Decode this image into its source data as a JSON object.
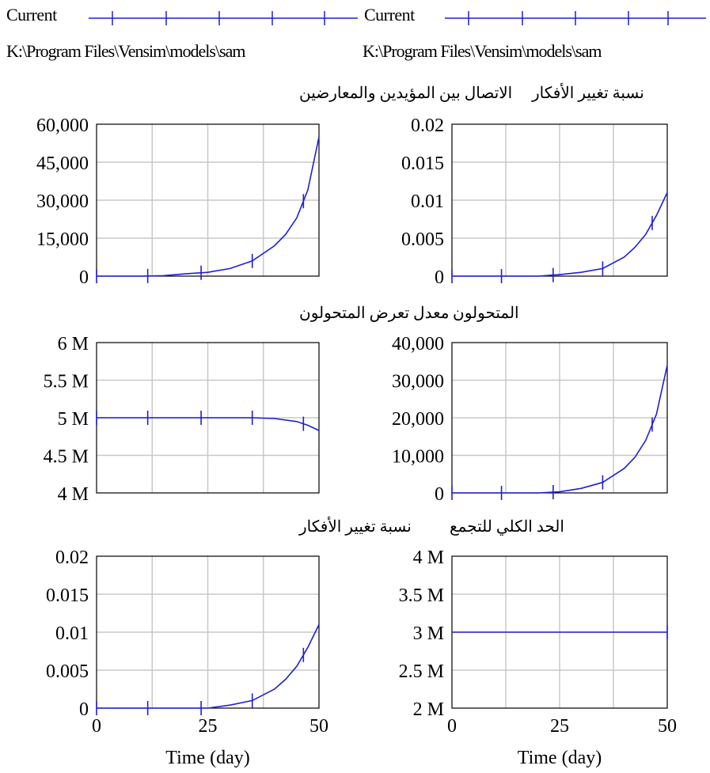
{
  "legend": [
    {
      "label": "Current",
      "path": "K:\\Program Files\\Vensim\\models\\sam"
    },
    {
      "label": "Current",
      "path": "K:\\Program Files\\Vensim\\models\\sam"
    }
  ],
  "colors": {
    "line": "#1f1fd6",
    "grid": "#c8c8c8",
    "frame": "#000000"
  },
  "chart_data": [
    {
      "type": "line",
      "title": "الاتصال بين المؤيدين والمعارضين",
      "x": [
        0,
        5,
        10,
        15,
        20,
        25,
        30,
        35,
        40,
        42.5,
        45,
        47.5,
        50
      ],
      "values": [
        0,
        0,
        0,
        200,
        900,
        1500,
        3000,
        6000,
        12000,
        16500,
        23000,
        34000,
        55000
      ],
      "ylim": [
        0,
        60000
      ],
      "yticks": [
        "60,000",
        "45,000",
        "30,000",
        "15,000",
        "0"
      ],
      "xlim": [
        0,
        50
      ],
      "xticks": [],
      "xlabel": ""
    },
    {
      "type": "line",
      "title": "نسبة تغيير الأفكار",
      "x": [
        0,
        5,
        10,
        15,
        20,
        25,
        30,
        35,
        40,
        42.5,
        45,
        47.5,
        50
      ],
      "values": [
        0,
        0,
        0,
        0,
        0,
        0.0002,
        0.0005,
        0.001,
        0.0025,
        0.0038,
        0.0055,
        0.008,
        0.011
      ],
      "ylim": [
        0,
        0.02
      ],
      "yticks": [
        "0.02",
        "0.015",
        "0.01",
        "0.005",
        "0"
      ],
      "xlim": [
        0,
        50
      ],
      "xticks": [],
      "xlabel": ""
    },
    {
      "type": "line",
      "title": "معدل تعرض المتحولون",
      "x": [
        0,
        5,
        10,
        15,
        20,
        25,
        30,
        35,
        40,
        45,
        47.5,
        50
      ],
      "values": [
        5000000,
        5000000,
        5000000,
        5000000,
        5000000,
        5000000,
        5000000,
        5000000,
        4990000,
        4950000,
        4900000,
        4830000
      ],
      "ylim": [
        4000000,
        6000000
      ],
      "yticks": [
        "6 M",
        "5.5 M",
        "5 M",
        "4.5 M",
        "4 M"
      ],
      "xlim": [
        0,
        50
      ],
      "xticks": [],
      "xlabel": ""
    },
    {
      "type": "line",
      "title": "المتحولون",
      "x": [
        0,
        5,
        10,
        15,
        20,
        25,
        30,
        35,
        40,
        42.5,
        45,
        47.5,
        50
      ],
      "values": [
        0,
        0,
        0,
        0,
        0,
        300,
        1200,
        2800,
        6500,
        9500,
        14000,
        21000,
        34000
      ],
      "ylim": [
        0,
        40000
      ],
      "yticks": [
        "40,000",
        "30,000",
        "20,000",
        "10,000",
        "0"
      ],
      "xlim": [
        0,
        50
      ],
      "xticks": [],
      "xlabel": ""
    },
    {
      "type": "line",
      "title": "نسبة تغيير الأفكار",
      "x": [
        0,
        5,
        10,
        15,
        20,
        25,
        30,
        35,
        40,
        42.5,
        45,
        47.5,
        50
      ],
      "values": [
        0,
        0,
        0,
        0,
        0,
        0,
        0.0004,
        0.001,
        0.0025,
        0.0038,
        0.0055,
        0.008,
        0.011
      ],
      "ylim": [
        0,
        0.02
      ],
      "yticks": [
        "0.02",
        "0.015",
        "0.01",
        "0.005",
        "0"
      ],
      "xlim": [
        0,
        50
      ],
      "xticks": [
        "0",
        "25",
        "50"
      ],
      "xlabel": "Time (day)"
    },
    {
      "type": "line",
      "title": "الحد الكلي للتجمع",
      "x": [
        0,
        10,
        20,
        30,
        40,
        50
      ],
      "values": [
        3000000,
        3000000,
        3000000,
        3000000,
        3000000,
        3000000
      ],
      "ylim": [
        2000000,
        4000000
      ],
      "yticks": [
        "4 M",
        "3.5 M",
        "3 M",
        "2.5 M",
        "2 M"
      ],
      "xlim": [
        0,
        50
      ],
      "xticks": [
        "0",
        "25",
        "50"
      ],
      "xlabel": "Time (day)"
    }
  ]
}
